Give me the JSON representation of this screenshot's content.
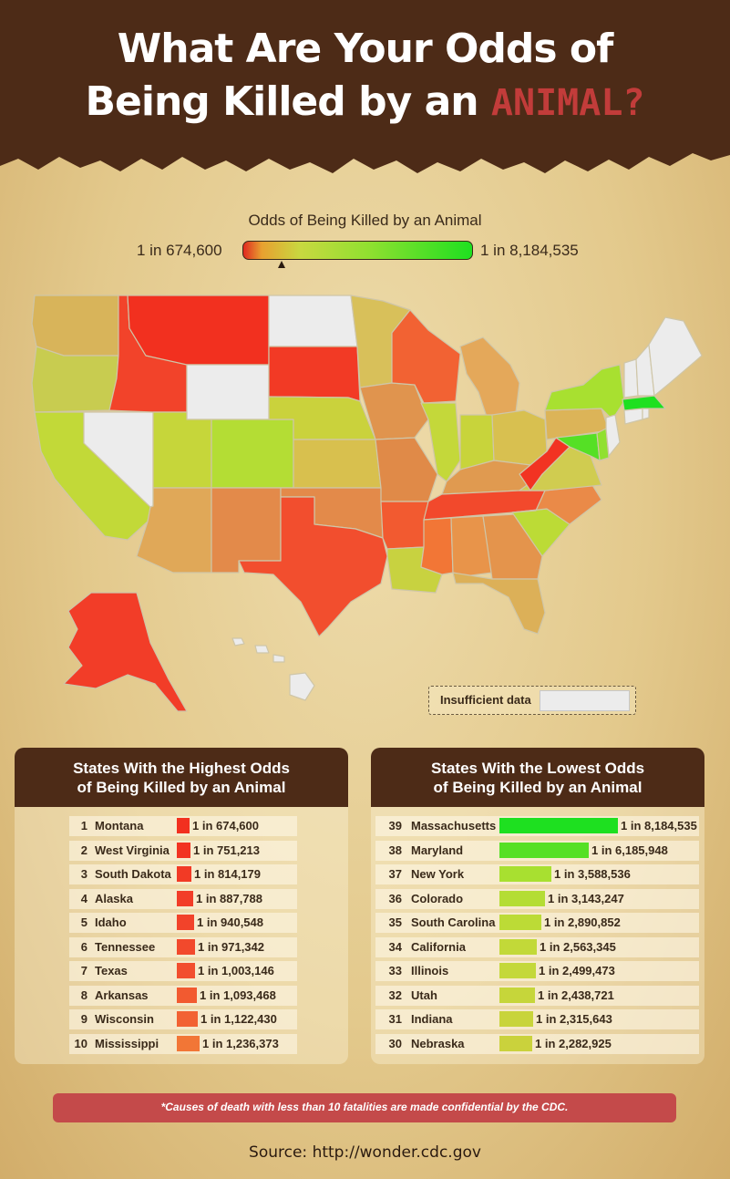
{
  "header": {
    "title_line1": "What Are Your Odds of",
    "title_line2_prefix": "Being Killed by an ",
    "title_line2_emph": "ANIMAL?"
  },
  "legend": {
    "title": "Odds of Being Killed by an Animal",
    "min_label": "1 in 674,600",
    "max_label": "1 in 8,184,535",
    "insufficient_label": "Insufficient data"
  },
  "colors": {
    "header_bg": "#4d2b17",
    "high_odds": "#e8321f",
    "low_odds": "#1ee020",
    "insufficient": "#ececec",
    "banner": "#c44a4a"
  },
  "chart_data": [
    {
      "type": "bar",
      "title": "States With the Highest Odds of Being Killed by an Animal",
      "title_line1": "States With the Highest Odds",
      "title_line2": "of Being Killed by an Animal",
      "rows": [
        {
          "rank": "1",
          "state": "Montana",
          "odds": "1 in 674,600",
          "value": 674600,
          "color": "#f2301f"
        },
        {
          "rank": "2",
          "state": "West Virginia",
          "odds": "1 in 751,213",
          "value": 751213,
          "color": "#f23322"
        },
        {
          "rank": "3",
          "state": "South Dakota",
          "odds": "1 in 814,179",
          "value": 814179,
          "color": "#f23a25"
        },
        {
          "rank": "4",
          "state": "Alaska",
          "odds": "1 in 887,788",
          "value": 887788,
          "color": "#f23d28"
        },
        {
          "rank": "5",
          "state": "Idaho",
          "odds": "1 in 940,548",
          "value": 940548,
          "color": "#f2432a"
        },
        {
          "rank": "6",
          "state": "Tennessee",
          "odds": "1 in 971,342",
          "value": 971342,
          "color": "#f2492c"
        },
        {
          "rank": "7",
          "state": "Texas",
          "odds": "1 in 1,003,146",
          "value": 1003146,
          "color": "#f24e2e"
        },
        {
          "rank": "8",
          "state": "Arkansas",
          "odds": "1 in 1,093,468",
          "value": 1093468,
          "color": "#f25a30"
        },
        {
          "rank": "9",
          "state": "Wisconsin",
          "odds": "1 in 1,122,430",
          "value": 1122430,
          "color": "#f26233"
        },
        {
          "rank": "10",
          "state": "Mississippi",
          "odds": "1 in 1,236,373",
          "value": 1236373,
          "color": "#f27636"
        }
      ]
    },
    {
      "type": "bar",
      "title": "States With the Lowest Odds of Being Killed by an Animal",
      "title_line1": "States With the Lowest Odds",
      "title_line2": "of Being Killed by an Animal",
      "rows": [
        {
          "rank": "39",
          "state": "Massachusetts",
          "odds": "1 in 8,184,535",
          "value": 8184535,
          "color": "#1ee020"
        },
        {
          "rank": "38",
          "state": "Maryland",
          "odds": "1 in 6,185,948",
          "value": 6185948,
          "color": "#55e025"
        },
        {
          "rank": "37",
          "state": "New York",
          "odds": "1 in 3,588,536",
          "value": 3588536,
          "color": "#a8e030"
        },
        {
          "rank": "36",
          "state": "Colorado",
          "odds": "1 in 3,143,247",
          "value": 3143247,
          "color": "#b4dd34"
        },
        {
          "rank": "35",
          "state": "South Carolina",
          "odds": "1 in 2,890,852",
          "value": 2890852,
          "color": "#bcdb36"
        },
        {
          "rank": "34",
          "state": "California",
          "odds": "1 in 2,563,345",
          "value": 2563345,
          "color": "#c2d938"
        },
        {
          "rank": "33",
          "state": "Illinois",
          "odds": "1 in 2,499,473",
          "value": 2499473,
          "color": "#c4d83a"
        },
        {
          "rank": "32",
          "state": "Utah",
          "odds": "1 in 2,438,721",
          "value": 2438721,
          "color": "#c6d63a"
        },
        {
          "rank": "31",
          "state": "Indiana",
          "odds": "1 in 2,315,643",
          "value": 2315643,
          "color": "#c8d43b"
        },
        {
          "rank": "30",
          "state": "Nebraska",
          "odds": "1 in 2,282,925",
          "value": 2282925,
          "color": "#cad23c"
        }
      ]
    }
  ],
  "map": {
    "states": [
      {
        "id": "WA",
        "color": "#d8b45a"
      },
      {
        "id": "OR",
        "color": "#c8cc50"
      },
      {
        "id": "CA",
        "color": "#c2d938"
      },
      {
        "id": "NV",
        "color": "#ececec"
      },
      {
        "id": "ID",
        "color": "#f2432a"
      },
      {
        "id": "MT",
        "color": "#f2301f"
      },
      {
        "id": "WY",
        "color": "#ececec"
      },
      {
        "id": "UT",
        "color": "#c6d63a"
      },
      {
        "id": "AZ",
        "color": "#e0a858"
      },
      {
        "id": "CO",
        "color": "#b4dd34"
      },
      {
        "id": "NM",
        "color": "#e38a4a"
      },
      {
        "id": "ND",
        "color": "#ececec"
      },
      {
        "id": "SD",
        "color": "#f23a25"
      },
      {
        "id": "NE",
        "color": "#cad23c"
      },
      {
        "id": "KS",
        "color": "#d8c04e"
      },
      {
        "id": "OK",
        "color": "#e38a4a"
      },
      {
        "id": "TX",
        "color": "#f24e2e"
      },
      {
        "id": "MN",
        "color": "#d8c05a"
      },
      {
        "id": "IA",
        "color": "#e0944e"
      },
      {
        "id": "MO",
        "color": "#e08a48"
      },
      {
        "id": "AR",
        "color": "#f25a30"
      },
      {
        "id": "LA",
        "color": "#c8d240"
      },
      {
        "id": "WI",
        "color": "#f26233"
      },
      {
        "id": "IL",
        "color": "#c4d83a"
      },
      {
        "id": "MI",
        "color": "#e4a85a"
      },
      {
        "id": "IN",
        "color": "#c8d43b"
      },
      {
        "id": "OH",
        "color": "#d8c050"
      },
      {
        "id": "KY",
        "color": "#e09a50"
      },
      {
        "id": "TN",
        "color": "#f2492c"
      },
      {
        "id": "MS",
        "color": "#f27636"
      },
      {
        "id": "AL",
        "color": "#e8944a"
      },
      {
        "id": "GA",
        "color": "#e4944c"
      },
      {
        "id": "FL",
        "color": "#dcb058"
      },
      {
        "id": "SC",
        "color": "#bcdb36"
      },
      {
        "id": "NC",
        "color": "#ea8a48"
      },
      {
        "id": "VA",
        "color": "#d0cc50"
      },
      {
        "id": "WV",
        "color": "#f23322"
      },
      {
        "id": "PA",
        "color": "#dcb458"
      },
      {
        "id": "NY",
        "color": "#a8e030"
      },
      {
        "id": "MD",
        "color": "#55e025"
      },
      {
        "id": "DE",
        "color": "#90e030"
      },
      {
        "id": "NJ",
        "color": "#ececec"
      },
      {
        "id": "CT",
        "color": "#ececec"
      },
      {
        "id": "RI",
        "color": "#ececec"
      },
      {
        "id": "MA",
        "color": "#1ee020"
      },
      {
        "id": "VT",
        "color": "#ececec"
      },
      {
        "id": "NH",
        "color": "#ececec"
      },
      {
        "id": "ME",
        "color": "#ececec"
      },
      {
        "id": "AK",
        "color": "#f23d28"
      },
      {
        "id": "HI",
        "color": "#ececec"
      }
    ]
  },
  "footer": {
    "note": "*Causes of death with less than 10 fatalities are made confidential by the CDC.",
    "source": "Source: http://wonder.cdc.gov"
  }
}
